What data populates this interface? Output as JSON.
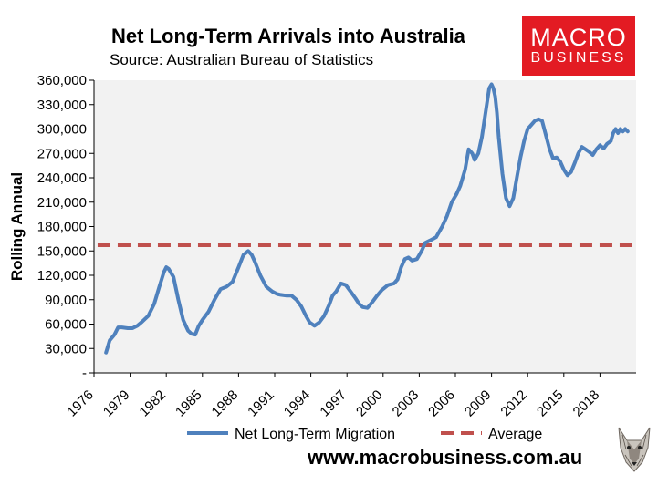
{
  "header": {
    "title": "Net Long-Term Arrivals into Australia",
    "subtitle": "Source: Australian Bureau of Statistics"
  },
  "logo": {
    "line1": "MACRO",
    "line2": "BUSINESS",
    "color": "#e31b23"
  },
  "footer": {
    "url": "www.macrobusiness.com.au"
  },
  "chart_data": {
    "type": "line",
    "title": "Net Long-Term Arrivals into Australia",
    "ylabel": "Rolling Annual",
    "xlabel": "",
    "ylim": [
      0,
      360000
    ],
    "xlim": [
      1976,
      2021
    ],
    "grid": false,
    "background": "#f2f2f2",
    "legend_position": "bottom",
    "x_ticks": [
      "1976",
      "1979",
      "1982",
      "1985",
      "1988",
      "1991",
      "1994",
      "1997",
      "2000",
      "2003",
      "2006",
      "2009",
      "2012",
      "2015",
      "2018"
    ],
    "y_ticks": [
      "-",
      "30,000",
      "60,000",
      "90,000",
      "120,000",
      "150,000",
      "180,000",
      "210,000",
      "240,000",
      "270,000",
      "300,000",
      "330,000",
      "360,000"
    ],
    "series": [
      {
        "name": "Net Long-Term Migration",
        "color": "#4f81bd",
        "x": [
          1977.0,
          1977.3,
          1977.7,
          1978.0,
          1978.3,
          1978.8,
          1979.2,
          1979.6,
          1980.0,
          1980.5,
          1981.0,
          1981.4,
          1981.8,
          1982.0,
          1982.2,
          1982.6,
          1983.0,
          1983.4,
          1983.8,
          1984.1,
          1984.4,
          1984.7,
          1985.0,
          1985.5,
          1986.0,
          1986.5,
          1987.0,
          1987.5,
          1988.0,
          1988.4,
          1988.8,
          1989.1,
          1989.4,
          1989.8,
          1990.3,
          1990.8,
          1991.2,
          1991.5,
          1992.0,
          1992.4,
          1992.8,
          1993.2,
          1993.6,
          1993.9,
          1994.3,
          1994.7,
          1995.1,
          1995.5,
          1995.8,
          1996.1,
          1996.5,
          1996.9,
          1997.3,
          1997.7,
          1998.0,
          1998.3,
          1998.7,
          1999.1,
          1999.5,
          1999.9,
          2000.4,
          2000.9,
          2001.2,
          2001.5,
          2001.8,
          2002.1,
          2002.4,
          2002.8,
          2003.2,
          2003.5,
          2003.9,
          2004.4,
          2004.9,
          2005.3,
          2005.7,
          2006.1,
          2006.4,
          2006.8,
          2007.1,
          2007.4,
          2007.6,
          2007.9,
          2008.2,
          2008.5,
          2008.8,
          2009.0,
          2009.15,
          2009.3,
          2009.45,
          2009.6,
          2009.9,
          2010.2,
          2010.5,
          2010.8,
          2011.1,
          2011.4,
          2011.7,
          2012.0,
          2012.3,
          2012.6,
          2012.9,
          2013.2,
          2013.5,
          2013.8,
          2014.1,
          2014.4,
          2014.7,
          2015.0,
          2015.3,
          2015.6,
          2015.9,
          2016.2,
          2016.5,
          2016.8,
          2017.1,
          2017.4,
          2017.7,
          2018.0,
          2018.3,
          2018.6,
          2018.9,
          2019.1,
          2019.3,
          2019.5,
          2019.7,
          2019.9,
          2020.1,
          2020.3
        ],
        "values": [
          25000,
          40000,
          47000,
          56000,
          56000,
          55000,
          55000,
          58000,
          63000,
          70000,
          85000,
          105000,
          124000,
          130000,
          128000,
          118000,
          90000,
          65000,
          52000,
          48000,
          47000,
          58000,
          65000,
          75000,
          90000,
          103000,
          106000,
          112000,
          130000,
          145000,
          150000,
          145000,
          135000,
          120000,
          106000,
          100000,
          97000,
          96000,
          95000,
          95000,
          90000,
          82000,
          70000,
          62000,
          58000,
          62000,
          70000,
          83000,
          95000,
          100000,
          110000,
          108000,
          100000,
          92000,
          85000,
          81000,
          80000,
          87000,
          95000,
          102000,
          108000,
          110000,
          115000,
          130000,
          140000,
          142000,
          138000,
          140000,
          150000,
          160000,
          163000,
          167000,
          180000,
          193000,
          210000,
          220000,
          230000,
          250000,
          275000,
          270000,
          262000,
          270000,
          290000,
          320000,
          350000,
          355000,
          350000,
          340000,
          320000,
          290000,
          245000,
          215000,
          205000,
          215000,
          240000,
          265000,
          285000,
          300000,
          305000,
          310000,
          312000,
          310000,
          293000,
          276000,
          264000,
          265000,
          260000,
          250000,
          243000,
          247000,
          258000,
          270000,
          278000,
          275000,
          272000,
          268000,
          275000,
          280000,
          276000,
          282000,
          285000,
          295000,
          300000,
          295000,
          300000,
          297000,
          300000,
          297000
        ]
      },
      {
        "name": "Average",
        "color": "#c0504d",
        "values": [
          157000
        ]
      }
    ]
  }
}
